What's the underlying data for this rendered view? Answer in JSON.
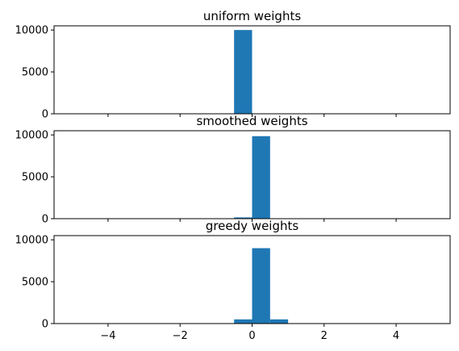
{
  "chart_data": [
    {
      "type": "bar",
      "title": "uniform weights",
      "xlabel": "",
      "ylabel": "",
      "bin_edges": [
        -0.5,
        0.0,
        0.5,
        1.0
      ],
      "values": [
        10000,
        0,
        0
      ],
      "xlim": [
        -5.5,
        5.5
      ],
      "ylim": [
        0,
        10500
      ],
      "x_ticks": [
        -4,
        -2,
        0,
        2,
        4
      ],
      "x_tick_labels": [
        "",
        "",
        "",
        "",
        ""
      ],
      "y_ticks": [
        0,
        5000,
        10000
      ],
      "y_tick_labels": [
        "0",
        "5000",
        "10000"
      ],
      "color": "#1f77b4",
      "grid": false
    },
    {
      "type": "bar",
      "title": "smoothed weights",
      "xlabel": "",
      "ylabel": "",
      "bin_edges": [
        -0.5,
        0.0,
        0.5,
        1.0
      ],
      "values": [
        150,
        9850,
        0
      ],
      "xlim": [
        -5.5,
        5.5
      ],
      "ylim": [
        0,
        10500
      ],
      "x_ticks": [
        -4,
        -2,
        0,
        2,
        4
      ],
      "x_tick_labels": [
        "",
        "",
        "",
        "",
        ""
      ],
      "y_ticks": [
        0,
        5000,
        10000
      ],
      "y_tick_labels": [
        "0",
        "5000",
        "10000"
      ],
      "color": "#1f77b4",
      "grid": false
    },
    {
      "type": "bar",
      "title": "greedy weights",
      "xlabel": "",
      "ylabel": "",
      "bin_edges": [
        -0.5,
        0.0,
        0.5,
        1.0
      ],
      "values": [
        500,
        9000,
        500
      ],
      "xlim": [
        -5.5,
        5.5
      ],
      "ylim": [
        0,
        10500
      ],
      "x_ticks": [
        -4,
        -2,
        0,
        2,
        4
      ],
      "x_tick_labels": [
        "−4",
        "−2",
        "0",
        "2",
        "4"
      ],
      "y_ticks": [
        0,
        5000,
        10000
      ],
      "y_tick_labels": [
        "0",
        "5000",
        "10000"
      ],
      "color": "#1f77b4",
      "grid": false
    }
  ]
}
